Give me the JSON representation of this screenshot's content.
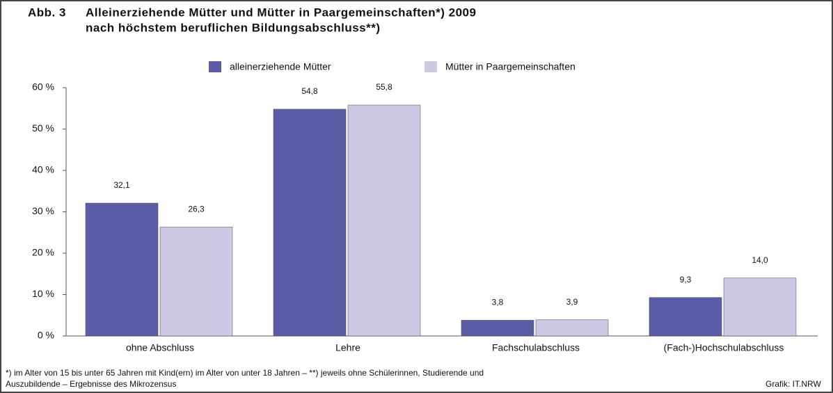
{
  "chart_data": {
    "type": "bar",
    "figure_label": "Abb. 3",
    "title": [
      "Alleinerziehende Mütter und Mütter in Paargemeinschaften*) 2009",
      "nach höchstem beruflichen Bildungsabschluss**)"
    ],
    "categories": [
      "ohne Abschluss",
      "Lehre",
      "Fachschulabschluss",
      "(Fach-)Hochschulabschluss"
    ],
    "series": [
      {
        "name": "alleinerziehende Mütter",
        "color": "#5b5ea6",
        "values": [
          32.1,
          54.8,
          3.8,
          9.3
        ],
        "value_labels": [
          "32,1",
          "54,8",
          "3,8",
          "9,3"
        ]
      },
      {
        "name": "Mütter in Paargemeinschaften",
        "color": "#cdc9e5",
        "values": [
          26.3,
          55.8,
          3.9,
          14.0
        ],
        "value_labels": [
          "26,3",
          "55,8",
          "3,9",
          "14,0"
        ]
      }
    ],
    "ylim": [
      0,
      60
    ],
    "yticks": [
      {
        "value": 0,
        "label": "0 %"
      },
      {
        "value": 10,
        "label": "10 %"
      },
      {
        "value": 20,
        "label": "20 %"
      },
      {
        "value": 30,
        "label": "30 %"
      },
      {
        "value": 40,
        "label": "40 %"
      },
      {
        "value": 50,
        "label": "50 %"
      },
      {
        "value": 60,
        "label": "60 %"
      }
    ],
    "grid": false,
    "legend": "top",
    "footnote": [
      "*) im Alter von 15 bis unter 65 Jahren mit Kind(ern) im Alter von unter 18 Jahren – **) jeweils ohne Schülerinnen, Studierende und",
      "Auszubildende – Ergebnisse des Mikrozensus"
    ],
    "source": "Grafik: IT.NRW"
  }
}
